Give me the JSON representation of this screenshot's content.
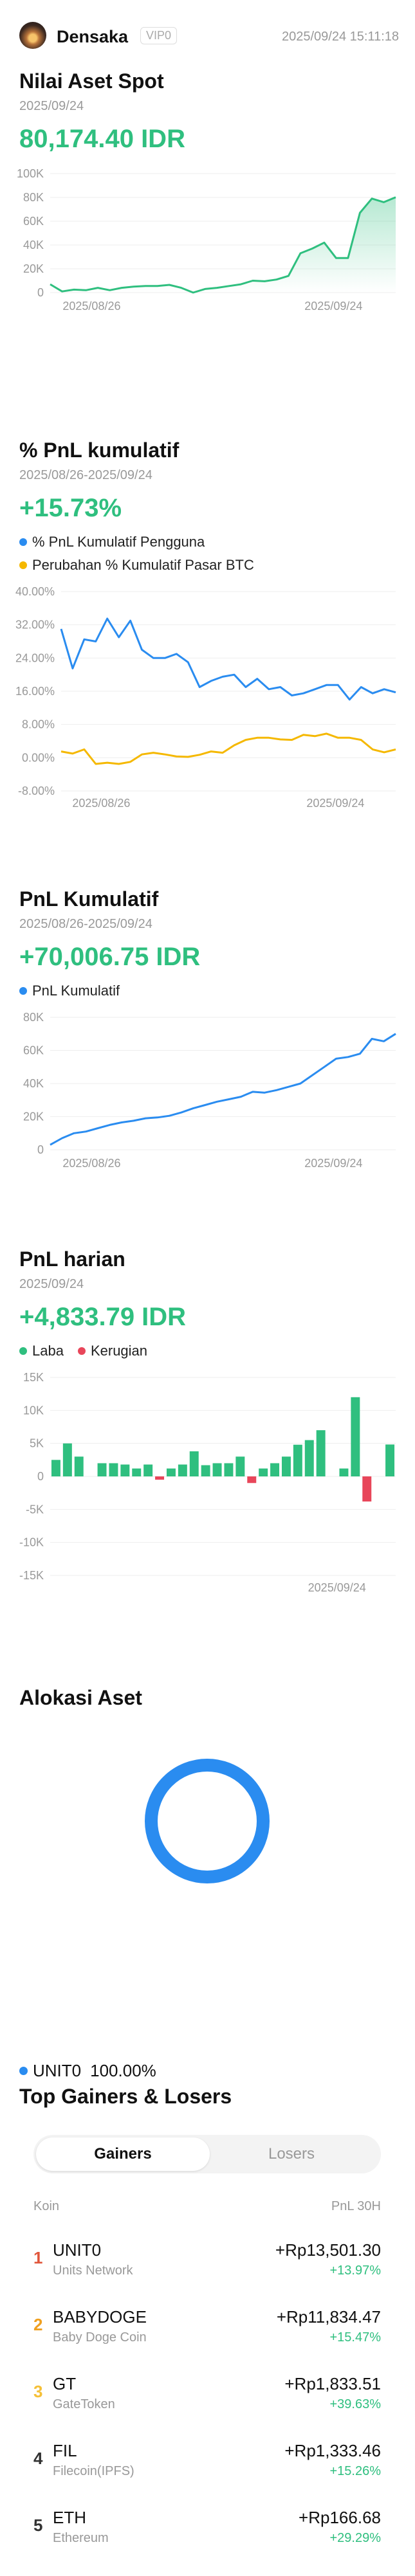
{
  "header": {
    "username": "Densaka",
    "vip_badge": "VIP0",
    "timestamp": "2025/09/24 15:11:18"
  },
  "spot_assets": {
    "title": "Nilai Aset Spot",
    "date": "2025/09/24",
    "value": "80,174.40 IDR"
  },
  "cum_pnl_pct": {
    "title": "% PnL kumulatif",
    "date_range": "2025/08/26-2025/09/24",
    "value": "+15.73%",
    "legend": [
      "% PnL Kumulatif Pengguna",
      "Perubahan % Kumulatif Pasar BTC"
    ]
  },
  "cum_pnl": {
    "title": "PnL Kumulatif",
    "date_range": "2025/08/26-2025/09/24",
    "value": "+70,006.75 IDR",
    "legend": [
      "PnL Kumulatif"
    ]
  },
  "daily_pnl": {
    "title": "PnL harian",
    "date": "2025/09/24",
    "value": "+4,833.79 IDR",
    "legend": [
      "Laba",
      "Kerugian"
    ]
  },
  "allocation": {
    "title": "Alokasi Aset",
    "legend_asset": "UNIT0",
    "legend_pct": "100.00%",
    "color": "#2a8cf0"
  },
  "gainers": {
    "title": "Top Gainers & Losers",
    "tabs": [
      "Gainers",
      "Losers"
    ],
    "col_coin": "Koin",
    "col_pnl": "PnL 30H",
    "rows": [
      {
        "rank": "1",
        "symbol": "UNIT0",
        "name": "Units Network",
        "pnl": "+Rp13,501.30",
        "pct": "+13.97%",
        "rank_color": "#e0563b"
      },
      {
        "rank": "2",
        "symbol": "BABYDOGE",
        "name": "Baby Doge Coin",
        "pnl": "+Rp11,834.47",
        "pct": "+15.47%",
        "rank_color": "#f0a020"
      },
      {
        "rank": "3",
        "symbol": "GT",
        "name": "GateToken",
        "pnl": "+Rp1,833.51",
        "pct": "+39.63%",
        "rank_color": "#f5c038"
      },
      {
        "rank": "4",
        "symbol": "FIL",
        "name": "Filecoin(IPFS)",
        "pnl": "+Rp1,333.46",
        "pct": "+15.26%",
        "rank_color": "#333333"
      },
      {
        "rank": "5",
        "symbol": "ETH",
        "name": "Ethereum",
        "pnl": "+Rp166.68",
        "pct": "+29.29%",
        "rank_color": "#333333"
      }
    ]
  },
  "colors": {
    "green": "#2fbf7f",
    "blue": "#2a8cf0",
    "yellow": "#f5b800",
    "red": "#e8465a"
  },
  "chart_data": [
    {
      "type": "area",
      "x_ticks": [
        "2025/08/26",
        "2025/09/24"
      ],
      "y_ticks": [
        "0",
        "20K",
        "40K",
        "60K",
        "80K",
        "100K"
      ],
      "ylim": [
        0,
        100000
      ],
      "grid": true,
      "series": [
        {
          "values": [
            7000,
            1000,
            2500,
            2000,
            4000,
            2000,
            4000,
            5000,
            5500,
            5500,
            6500,
            4000,
            0,
            3000,
            4000,
            5500,
            7000,
            10000,
            9500,
            11000,
            14000,
            33000,
            37000,
            42000,
            29000,
            29000,
            67000,
            79000,
            76000,
            80174
          ]
        }
      ]
    },
    {
      "type": "line",
      "x_ticks": [
        "2025/08/26",
        "2025/09/24"
      ],
      "y_ticks": [
        "-8.00%",
        "0.00%",
        "8.00%",
        "16.00%",
        "24.00%",
        "32.00%",
        "40.00%"
      ],
      "ylim": [
        -8,
        40
      ],
      "grid": true,
      "series": [
        {
          "name": "% PnL Kumulatif Pengguna",
          "values": [
            31,
            21.5,
            28.5,
            28,
            33.5,
            29,
            33,
            26,
            24,
            24,
            25,
            23,
            17,
            18.5,
            19.5,
            20,
            17,
            19,
            16.5,
            17,
            15,
            15.5,
            16.5,
            17.5,
            17.5,
            14,
            17,
            15.5,
            16.5,
            15.73
          ]
        },
        {
          "name": "Perubahan % Kumulatif Pasar BTC",
          "values": [
            1.5,
            1,
            2,
            -1.5,
            -1.2,
            -1.5,
            -1,
            0.8,
            1.2,
            0.8,
            0.3,
            0.2,
            0.7,
            1.5,
            1.2,
            3,
            4.3,
            4.8,
            4.8,
            4.4,
            4.3,
            5.5,
            5.2,
            5.8,
            4.8,
            4.8,
            4.3,
            2,
            1.3,
            2
          ]
        }
      ]
    },
    {
      "type": "line",
      "x_ticks": [
        "2025/08/26",
        "2025/09/24"
      ],
      "y_ticks": [
        "0",
        "20K",
        "40K",
        "60K",
        "80K"
      ],
      "ylim": [
        0,
        80000
      ],
      "grid": true,
      "series": [
        {
          "name": "PnL Kumulatif",
          "values": [
            3000,
            7000,
            10000,
            11000,
            13000,
            15000,
            16500,
            17500,
            19000,
            19500,
            20500,
            22500,
            25000,
            27000,
            29000,
            30500,
            32000,
            35000,
            34500,
            36000,
            38000,
            40000,
            45000,
            50000,
            55000,
            56000,
            58000,
            67000,
            65500,
            70006
          ]
        }
      ]
    },
    {
      "type": "bar",
      "x_ticks": [
        "2025/09/24"
      ],
      "y_ticks": [
        "-15K",
        "-10K",
        "-5K",
        "0",
        "5K",
        "10K",
        "15K"
      ],
      "ylim": [
        -15000,
        15000
      ],
      "grid": true,
      "series": [
        {
          "name": "Laba / Kerugian",
          "values": [
            2500,
            5000,
            3000,
            0,
            2000,
            2000,
            1800,
            1200,
            1800,
            -500,
            1200,
            1800,
            3800,
            1700,
            2000,
            2000,
            3000,
            -1000,
            1200,
            2000,
            3000,
            4800,
            5500,
            7000,
            0,
            1200,
            12000,
            -3800,
            0,
            4834
          ]
        }
      ]
    }
  ]
}
